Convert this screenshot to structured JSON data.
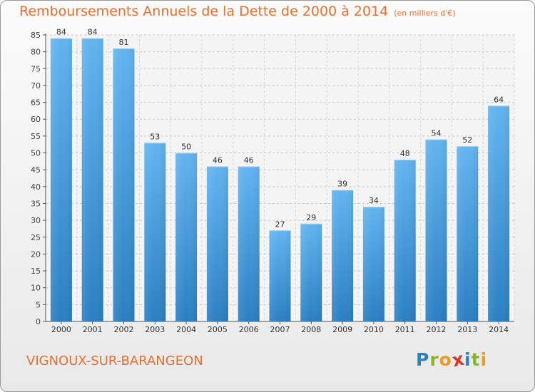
{
  "header": {
    "title": "Remboursements Annuels de la Dette de 2000 à 2014",
    "subtitle": "(en milliers d'€)"
  },
  "footer": {
    "town": "VIGNOUX-SUR-BARANGEON",
    "logo_letters": [
      {
        "ch": "P",
        "color": "#2e7fbf"
      },
      {
        "ch": "r",
        "color": "#8ab42a"
      },
      {
        "ch": "o",
        "color": "#f29a1d"
      },
      {
        "ch": "x",
        "color": "#d9352b"
      },
      {
        "ch": "i",
        "color": "#2e7fbf"
      },
      {
        "ch": "t",
        "color": "#8ab42a"
      },
      {
        "ch": "i",
        "color": "#f29a1d"
      }
    ]
  },
  "colors": {
    "bar_top": "#62b4f0",
    "bar_bottom": "#2a7fc2",
    "accent": "#e6702f"
  },
  "chart_data": {
    "type": "bar",
    "title": "Remboursements Annuels de la Dette de 2000 à 2014",
    "subtitle": "(en milliers d'€)",
    "xlabel": "",
    "ylabel": "",
    "categories": [
      "2000",
      "2001",
      "2002",
      "2003",
      "2004",
      "2005",
      "2006",
      "2007",
      "2008",
      "2009",
      "2010",
      "2011",
      "2012",
      "2013",
      "2014"
    ],
    "values": [
      84,
      84,
      81,
      53,
      50,
      46,
      46,
      27,
      29,
      39,
      34,
      48,
      54,
      52,
      64
    ],
    "ylim": [
      0,
      85
    ],
    "yticks": [
      0,
      5,
      10,
      15,
      20,
      25,
      30,
      35,
      40,
      45,
      50,
      55,
      60,
      65,
      70,
      75,
      80,
      85
    ],
    "grid": true,
    "data_labels": true
  }
}
